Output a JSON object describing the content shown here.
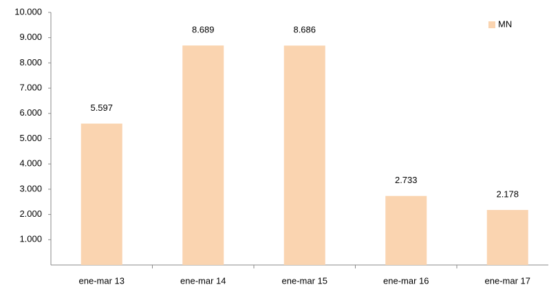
{
  "chart_data": {
    "type": "bar",
    "categories": [
      "ene-mar 13",
      "ene-mar 14",
      "ene-mar 15",
      "ene-mar 16",
      "ene-mar 17"
    ],
    "series": [
      {
        "name": "MN",
        "color": "#fad4b0",
        "values": [
          5597,
          8689,
          8686,
          2733,
          2178
        ],
        "value_labels": [
          "5.597",
          "8.689",
          "8.686",
          "2.733",
          "2.178"
        ]
      }
    ],
    "ylim": [
      0,
      10000
    ],
    "yticks": [
      {
        "value": 1000,
        "label": "1.000"
      },
      {
        "value": 2000,
        "label": "2.000"
      },
      {
        "value": 3000,
        "label": "3.000"
      },
      {
        "value": 4000,
        "label": "4.000"
      },
      {
        "value": 5000,
        "label": "5.000"
      },
      {
        "value": 6000,
        "label": "6.000"
      },
      {
        "value": 7000,
        "label": "7.000"
      },
      {
        "value": 8000,
        "label": "8.000"
      },
      {
        "value": 9000,
        "label": "9.000"
      },
      {
        "value": 10000,
        "label": "10.000"
      }
    ],
    "grid": false,
    "legend": "top-right"
  }
}
